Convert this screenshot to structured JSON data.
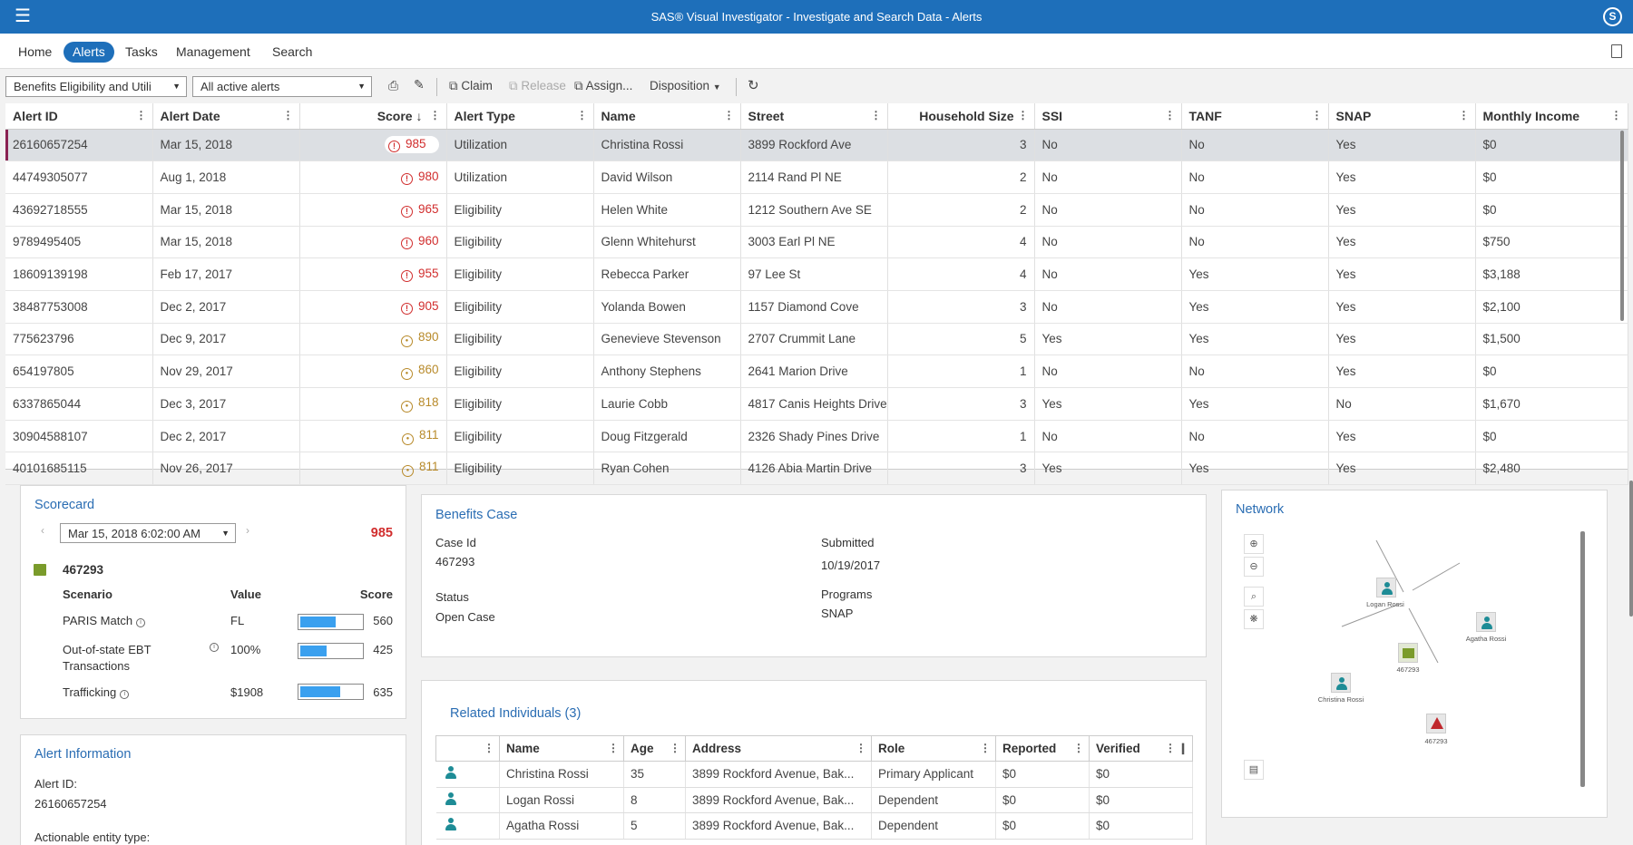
{
  "app": {
    "title": "SAS® Visual Investigator - Investigate and Search Data - Alerts",
    "user_initial": "S"
  },
  "nav": {
    "items": [
      "Home",
      "Alerts",
      "Tasks",
      "Management",
      "Search"
    ],
    "active": "Alerts"
  },
  "toolbar": {
    "queue_select": "Benefits Eligibility and Utili",
    "filter_select": "All active alerts",
    "claim": "Claim",
    "release": "Release",
    "assign": "Assign...",
    "disposition": "Disposition"
  },
  "alerts_grid": {
    "columns": [
      "Alert ID",
      "Alert Date",
      "Score",
      "Alert Type",
      "Name",
      "Street",
      "Household Size",
      "SSI",
      "TANF",
      "SNAP",
      "Monthly Income"
    ],
    "sort_indicator": "↓",
    "rows": [
      {
        "id": "26160657254",
        "date": "Mar 15, 2018",
        "score": "985",
        "level": "high",
        "type": "Utilization",
        "name": "Christina Rossi",
        "street": "3899 Rockford Ave",
        "household": "3",
        "ssi": "No",
        "tanf": "No",
        "snap": "Yes",
        "income": "$0"
      },
      {
        "id": "44749305077",
        "date": "Aug 1, 2018",
        "score": "980",
        "level": "high",
        "type": "Utilization",
        "name": "David Wilson",
        "street": "2114 Rand Pl NE",
        "household": "2",
        "ssi": "No",
        "tanf": "No",
        "snap": "Yes",
        "income": "$0"
      },
      {
        "id": "43692718555",
        "date": "Mar 15, 2018",
        "score": "965",
        "level": "high",
        "type": "Eligibility",
        "name": "Helen White",
        "street": "1212 Southern Ave SE",
        "household": "2",
        "ssi": "No",
        "tanf": "No",
        "snap": "Yes",
        "income": "$0"
      },
      {
        "id": "9789495405",
        "date": "Mar 15, 2018",
        "score": "960",
        "level": "high",
        "type": "Eligibility",
        "name": "Glenn Whitehurst",
        "street": "3003 Earl Pl NE",
        "household": "4",
        "ssi": "No",
        "tanf": "No",
        "snap": "Yes",
        "income": "$750"
      },
      {
        "id": "18609139198",
        "date": "Feb 17, 2017",
        "score": "955",
        "level": "high",
        "type": "Eligibility",
        "name": "Rebecca Parker",
        "street": "97 Lee St",
        "household": "4",
        "ssi": "No",
        "tanf": "Yes",
        "snap": "Yes",
        "income": "$3,188"
      },
      {
        "id": "38487753008",
        "date": "Dec 2, 2017",
        "score": "905",
        "level": "high",
        "type": "Eligibility",
        "name": "Yolanda Bowen",
        "street": "1157 Diamond Cove",
        "household": "3",
        "ssi": "No",
        "tanf": "Yes",
        "snap": "Yes",
        "income": "$2,100"
      },
      {
        "id": "775623796",
        "date": "Dec 9, 2017",
        "score": "890",
        "level": "med",
        "type": "Eligibility",
        "name": "Genevieve Stevenson",
        "street": "2707 Crummit Lane",
        "household": "5",
        "ssi": "Yes",
        "tanf": "Yes",
        "snap": "Yes",
        "income": "$1,500"
      },
      {
        "id": "654197805",
        "date": "Nov 29, 2017",
        "score": "860",
        "level": "med",
        "type": "Eligibility",
        "name": "Anthony Stephens",
        "street": "2641 Marion Drive",
        "household": "1",
        "ssi": "No",
        "tanf": "No",
        "snap": "Yes",
        "income": "$0"
      },
      {
        "id": "6337865044",
        "date": "Dec 3, 2017",
        "score": "818",
        "level": "med",
        "type": "Eligibility",
        "name": "Laurie Cobb",
        "street": "4817 Canis Heights Drive",
        "household": "3",
        "ssi": "Yes",
        "tanf": "Yes",
        "snap": "No",
        "income": "$1,670"
      },
      {
        "id": "30904588107",
        "date": "Dec 2, 2017",
        "score": "811",
        "level": "med",
        "type": "Eligibility",
        "name": "Doug Fitzgerald",
        "street": "2326 Shady Pines Drive",
        "household": "1",
        "ssi": "No",
        "tanf": "No",
        "snap": "Yes",
        "income": "$0"
      },
      {
        "id": "40101685115",
        "date": "Nov 26, 2017",
        "score": "811",
        "level": "med",
        "type": "Eligibility",
        "name": "Ryan Cohen",
        "street": "4126 Abia Martin Drive",
        "household": "3",
        "ssi": "Yes",
        "tanf": "Yes",
        "snap": "Yes",
        "income": "$2,480"
      }
    ]
  },
  "scorecard": {
    "title": "Scorecard",
    "date": "Mar 15, 2018 6:02:00 AM",
    "total_score": "985",
    "entity_id": "467293",
    "headers": {
      "scenario": "Scenario",
      "value": "Value",
      "score": "Score"
    },
    "rows": [
      {
        "scenario": "PARIS Match",
        "value": "FL",
        "score": "560",
        "fill": 0.56
      },
      {
        "scenario": "Out-of-state EBT",
        "scenario2": "Transactions",
        "value": "100%",
        "score": "425",
        "fill": 0.425
      },
      {
        "scenario": "Trafficking",
        "value": "$1908",
        "score": "635",
        "fill": 0.635
      }
    ]
  },
  "alert_info": {
    "title": "Alert Information",
    "id_label": "Alert ID:",
    "id_value": "26160657254",
    "entity_label": "Actionable entity type:"
  },
  "benefits_case": {
    "title": "Benefits Case",
    "case_id_label": "Case Id",
    "case_id": "467293",
    "submitted_label": "Submitted",
    "submitted": "10/19/2017",
    "status_label": "Status",
    "status": "Open Case",
    "programs_label": "Programs",
    "programs": "SNAP"
  },
  "related": {
    "title": "Related Individuals (3)",
    "columns": [
      "Name",
      "Age",
      "Address",
      "Role",
      "Reported",
      "Verified"
    ],
    "rows": [
      {
        "name": "Christina Rossi",
        "age": "35",
        "address": "3899 Rockford Avenue, Bak...",
        "role": "Primary Applicant",
        "reported": "$0",
        "verified": "$0"
      },
      {
        "name": "Logan Rossi",
        "age": "8",
        "address": "3899 Rockford Avenue, Bak...",
        "role": "Dependent",
        "reported": "$0",
        "verified": "$0"
      },
      {
        "name": "Agatha Rossi",
        "age": "5",
        "address": "3899 Rockford Avenue, Bak...",
        "role": "Dependent",
        "reported": "$0",
        "verified": "$0"
      }
    ]
  },
  "network": {
    "title": "Network",
    "nodes": {
      "logan": "Logan Rossi",
      "agatha": "Agatha Rossi",
      "case": "467293",
      "christina": "Christina Rossi",
      "alert": "467293"
    }
  },
  "colors": {
    "brand": "#1e6fba",
    "high_score": "#d12d2d",
    "medium_score": "#b88a2a",
    "bar_fill": "#3aa0ef",
    "person": "#1e8c96"
  }
}
